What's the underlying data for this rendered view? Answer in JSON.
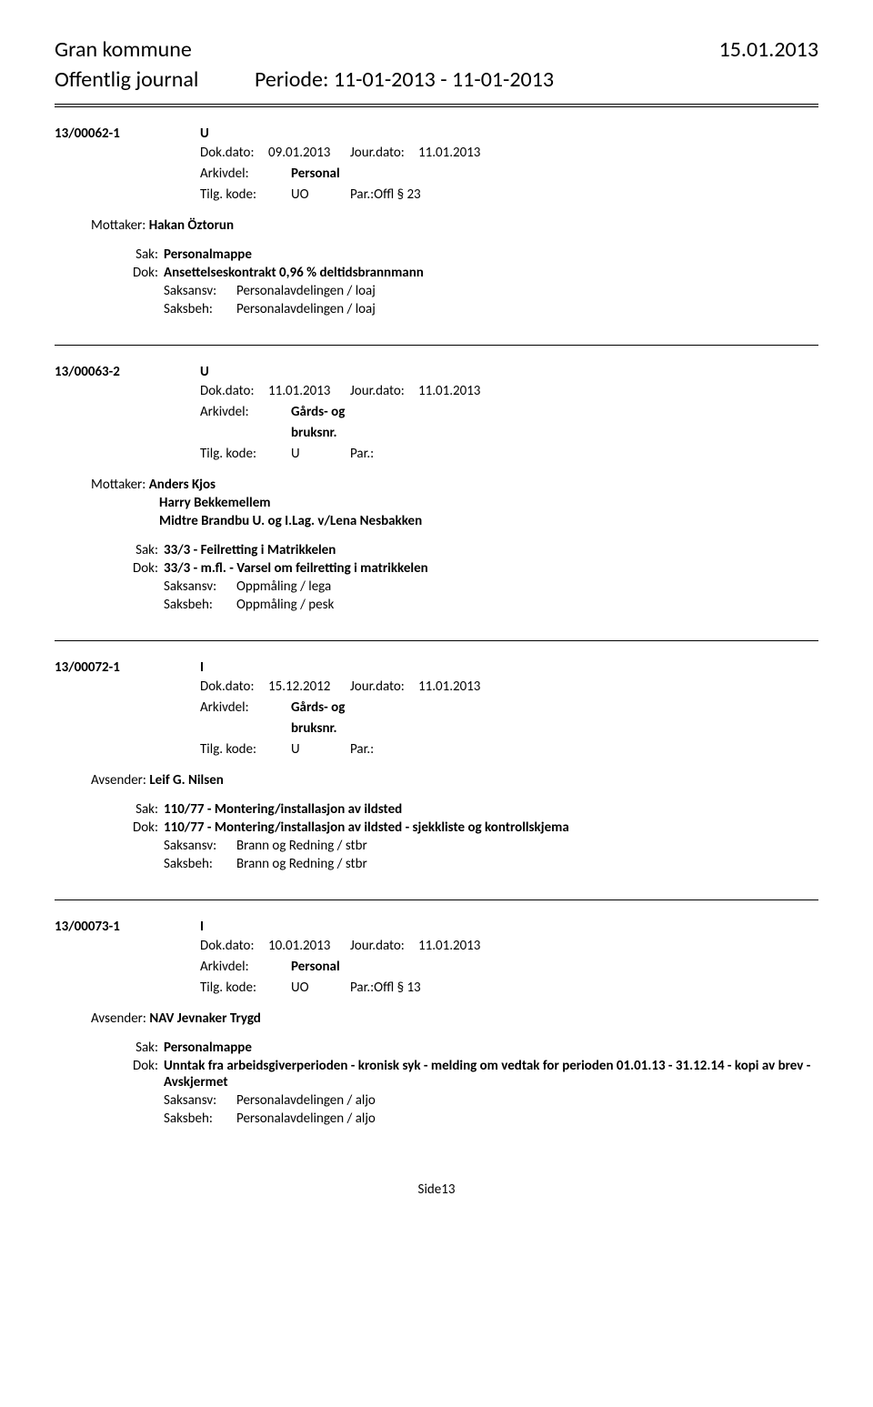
{
  "header": {
    "municipality": "Gran kommune",
    "date": "15.01.2013",
    "journal_title": "Offentlig journal",
    "period_label": "Periode:",
    "period_value": "11-01-2013 - 11-01-2013"
  },
  "labels": {
    "dok_dato": "Dok.dato:",
    "jour_dato": "Jour.dato:",
    "arkivdel": "Arkivdel:",
    "tilg_kode": "Tilg. kode:",
    "par": "Par.:",
    "mottaker": "Mottaker:",
    "avsender": "Avsender:",
    "sak": "Sak:",
    "dok": "Dok:",
    "saksansv": "Saksansv:",
    "saksbeh": "Saksbeh:"
  },
  "entries": [
    {
      "id": "13/00062-1",
      "type": "U",
      "dok_dato": "09.01.2013",
      "jour_dato": "11.01.2013",
      "arkivdel": "Personal",
      "arkivdel_multiline": false,
      "tilg_kode": "UO",
      "par": "Offl § 23",
      "party_type": "mottaker",
      "parties": [
        "Hakan Öztorun"
      ],
      "sak": "Personalmappe",
      "dok": "Ansettelseskontrakt 0,96 % deltidsbrannmann",
      "saksansv": "Personalavdelingen / loaj",
      "saksbeh": "Personalavdelingen / loaj"
    },
    {
      "id": "13/00063-2",
      "type": "U",
      "dok_dato": "11.01.2013",
      "jour_dato": "11.01.2013",
      "arkivdel": "Gårds- og bruksnr.",
      "arkivdel_multiline": true,
      "arkivdel_line1": "Gårds- og",
      "arkivdel_line2": "bruksnr.",
      "tilg_kode": "U",
      "par": "",
      "party_type": "mottaker",
      "parties": [
        "Anders Kjos",
        "Harry Bekkemellem",
        "Midtre Brandbu U. og I.Lag. v/Lena Nesbakken"
      ],
      "sak": "33/3 - Feilretting i Matrikkelen",
      "dok": "33/3 - m.fl. - Varsel om feilretting i matrikkelen",
      "saksansv": "Oppmåling / lega",
      "saksbeh": "Oppmåling / pesk"
    },
    {
      "id": "13/00072-1",
      "type": "I",
      "dok_dato": "15.12.2012",
      "jour_dato": "11.01.2013",
      "arkivdel": "Gårds- og bruksnr.",
      "arkivdel_multiline": true,
      "arkivdel_line1": "Gårds- og",
      "arkivdel_line2": "bruksnr.",
      "tilg_kode": "U",
      "par": "",
      "party_type": "avsender",
      "parties": [
        "Leif G. Nilsen"
      ],
      "sak": "110/77 - Montering/installasjon av ildsted",
      "dok": "110/77 - Montering/installasjon av ildsted - sjekkliste og kontrollskjema",
      "saksansv": "Brann og Redning / stbr",
      "saksbeh": "Brann og Redning / stbr"
    },
    {
      "id": "13/00073-1",
      "type": "I",
      "dok_dato": "10.01.2013",
      "jour_dato": "11.01.2013",
      "arkivdel": "Personal",
      "arkivdel_multiline": false,
      "tilg_kode": "UO",
      "par": "Offl § 13",
      "party_type": "avsender",
      "parties": [
        "NAV Jevnaker Trygd"
      ],
      "sak": "Personalmappe",
      "dok": "Unntak fra arbeidsgiverperioden - kronisk syk - melding om vedtak for perioden 01.01.13 - 31.12.14 - kopi av brev - Avskjermet",
      "saksansv": "Personalavdelingen / aljo",
      "saksbeh": "Personalavdelingen / aljo"
    }
  ],
  "footer": {
    "page": "Side13"
  }
}
